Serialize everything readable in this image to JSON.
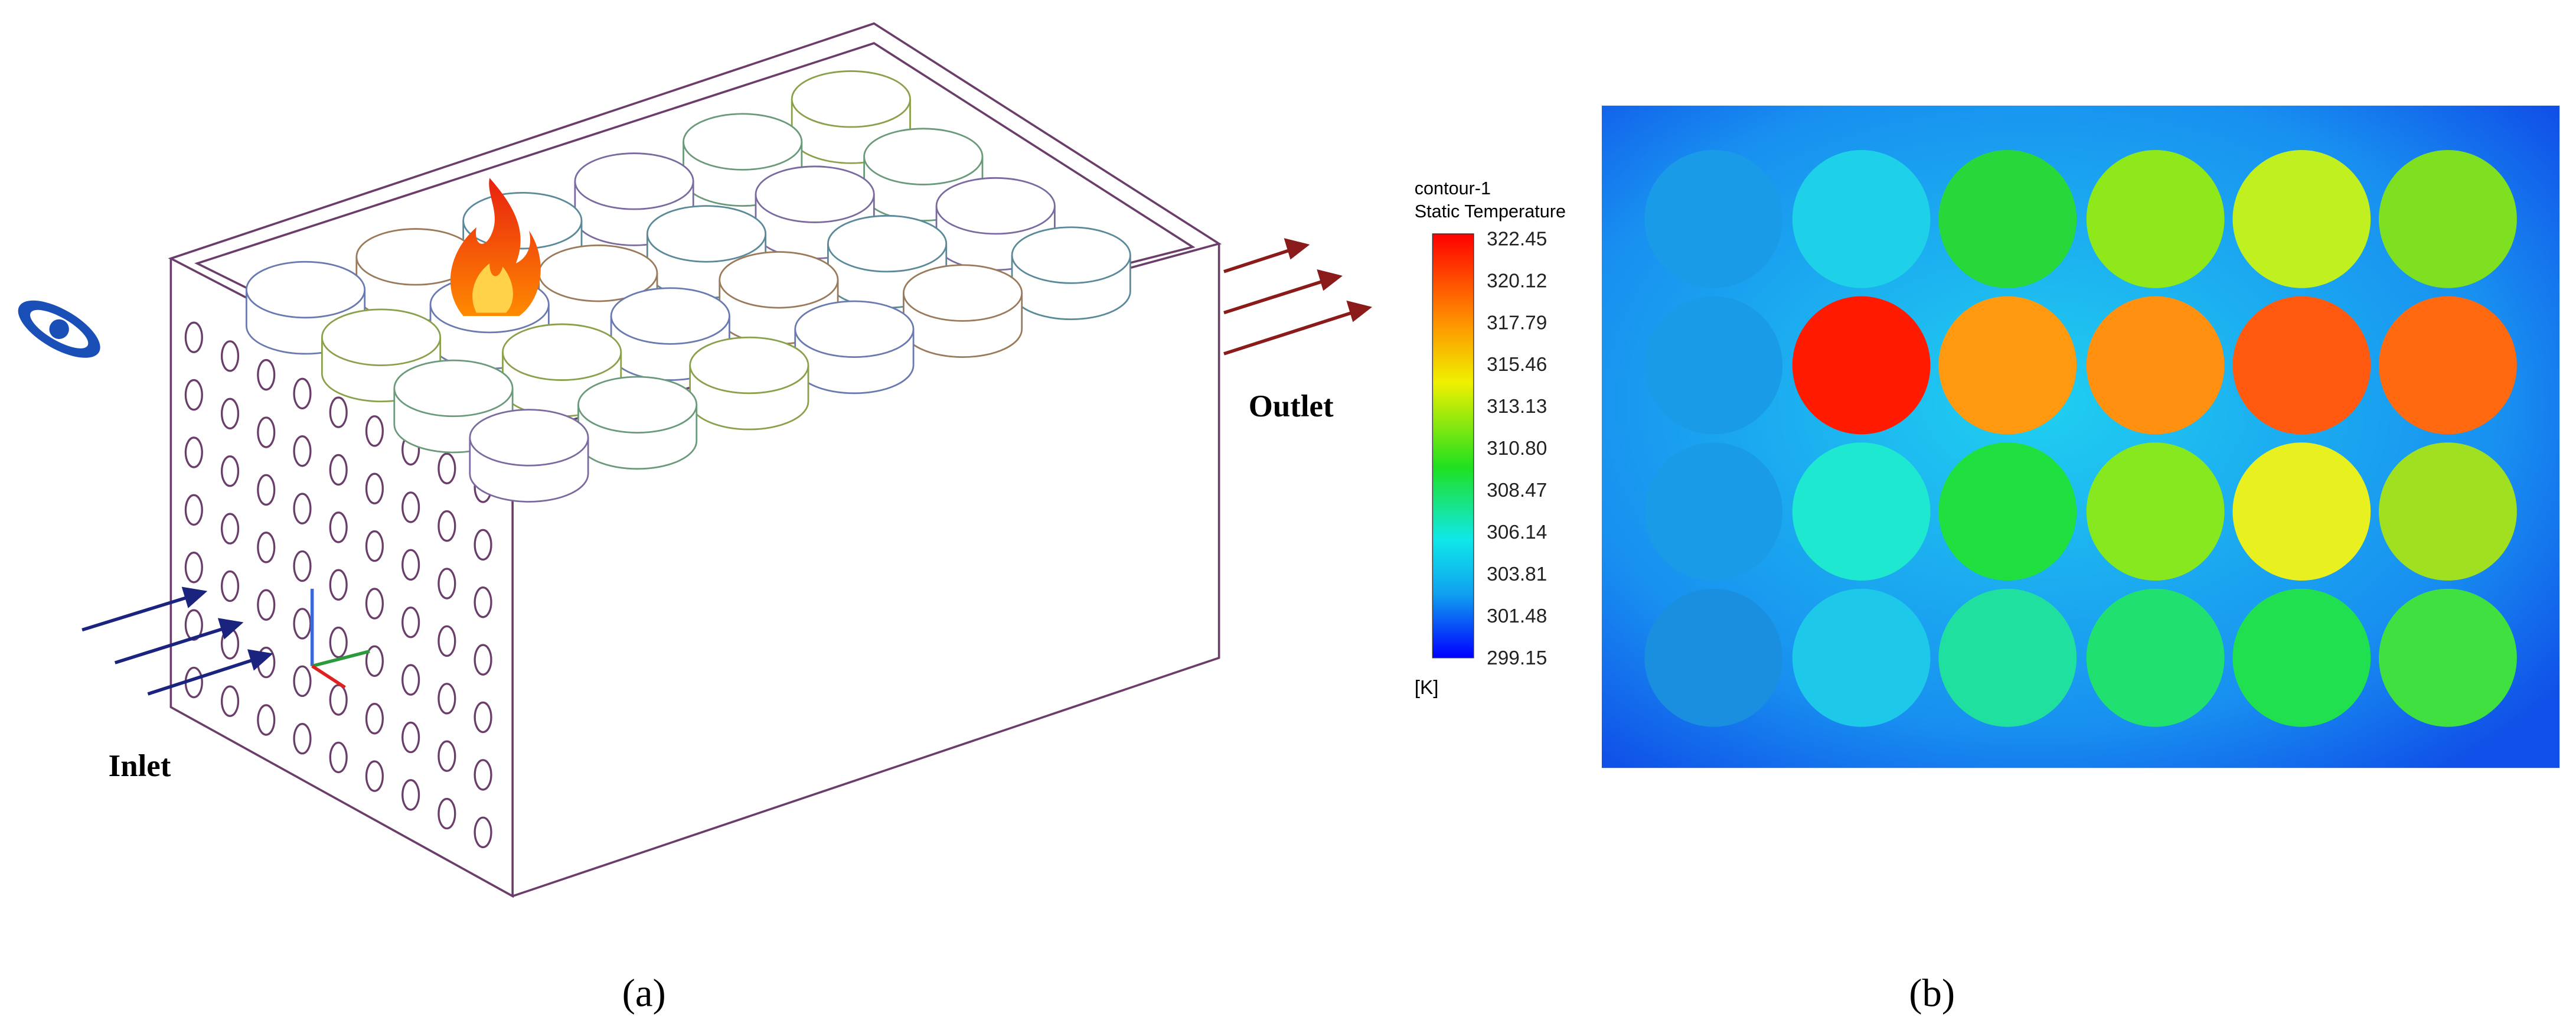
{
  "panel_a": {
    "inlet_label": "Inlet",
    "outlet_label": "Outlet",
    "caption": "(a)"
  },
  "panel_b": {
    "legend": {
      "title": "contour-1",
      "subtitle": "Static Temperature",
      "ticks": [
        "322.45",
        "320.12",
        "317.79",
        "315.46",
        "313.13",
        "310.80",
        "308.47",
        "306.14",
        "303.81",
        "301.48",
        "299.15"
      ],
      "unit": "[K]"
    },
    "caption": "(b)"
  }
}
